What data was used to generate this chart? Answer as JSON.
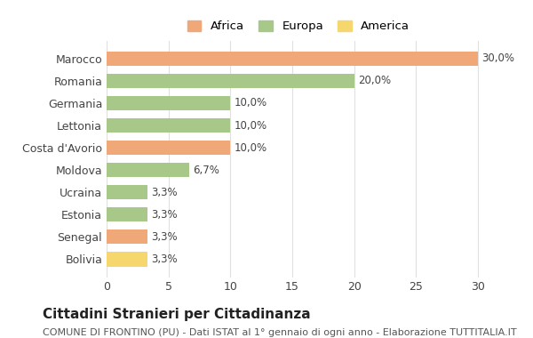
{
  "categories": [
    "Bolivia",
    "Senegal",
    "Estonia",
    "Ucraina",
    "Moldova",
    "Costa d'Avorio",
    "Lettonia",
    "Germania",
    "Romania",
    "Marocco"
  ],
  "values": [
    3.3,
    3.3,
    3.3,
    3.3,
    6.7,
    10.0,
    10.0,
    10.0,
    20.0,
    30.0
  ],
  "colors": [
    "#f5d76e",
    "#f0a878",
    "#a8c88a",
    "#a8c88a",
    "#a8c88a",
    "#f0a878",
    "#a8c88a",
    "#a8c88a",
    "#a8c88a",
    "#f0a878"
  ],
  "labels": [
    "3,3%",
    "3,3%",
    "3,3%",
    "3,3%",
    "6,7%",
    "10,0%",
    "10,0%",
    "10,0%",
    "20,0%",
    "30,0%"
  ],
  "legend": [
    {
      "label": "Africa",
      "color": "#f0a878"
    },
    {
      "label": "Europa",
      "color": "#a8c88a"
    },
    {
      "label": "America",
      "color": "#f5d76e"
    }
  ],
  "title": "Cittadini Stranieri per Cittadinanza",
  "subtitle": "COMUNE DI FRONTINO (PU) - Dati ISTAT al 1° gennaio di ogni anno - Elaborazione TUTTITALIA.IT",
  "xlim": [
    0,
    31
  ],
  "xticks": [
    0,
    5,
    10,
    15,
    20,
    25,
    30
  ],
  "bg_color": "#ffffff",
  "grid_color": "#e0e0e0",
  "bar_height": 0.65,
  "title_fontsize": 11,
  "subtitle_fontsize": 8,
  "label_fontsize": 8.5,
  "tick_fontsize": 9
}
